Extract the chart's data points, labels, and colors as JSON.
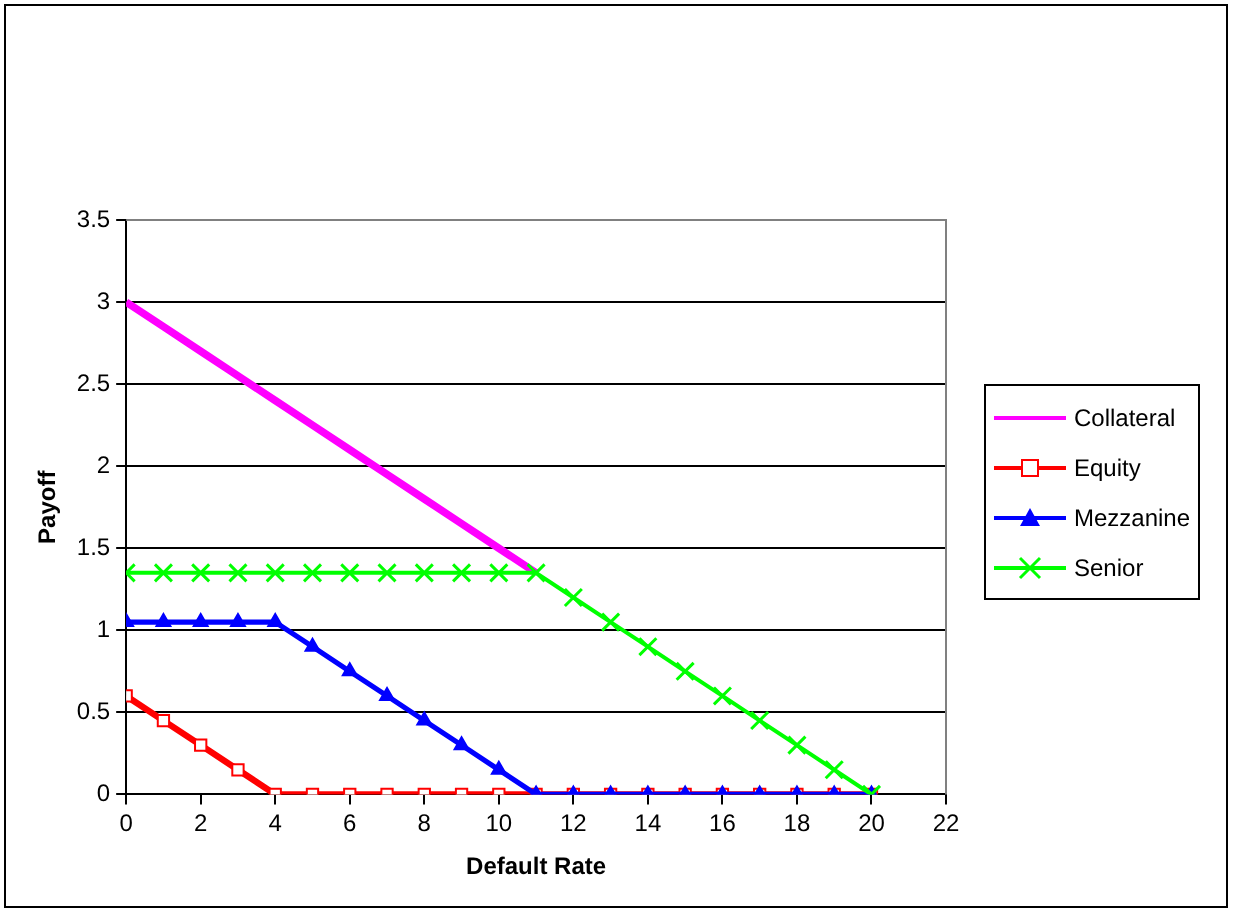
{
  "chart_data": {
    "type": "line",
    "xlabel": "Default Rate",
    "ylabel": "Payoff",
    "x": [
      0,
      1,
      2,
      3,
      4,
      5,
      6,
      7,
      8,
      9,
      10,
      11,
      12,
      13,
      14,
      15,
      16,
      17,
      18,
      19,
      20
    ],
    "series": [
      {
        "name": "Collateral",
        "color": "#ff00ff",
        "marker": "none",
        "values": [
          3,
          2.85,
          2.7,
          2.55,
          2.4,
          2.25,
          2.1,
          1.95,
          1.8,
          1.65,
          1.5,
          1.35,
          null,
          null,
          null,
          null,
          null,
          null,
          null,
          null,
          null
        ]
      },
      {
        "name": "Equity",
        "color": "#ff0000",
        "marker": "square",
        "values": [
          0.6,
          0.45,
          0.3,
          0.15,
          0,
          0,
          0,
          0,
          0,
          0,
          0,
          0,
          0,
          0,
          0,
          0,
          0,
          0,
          0,
          0,
          0
        ]
      },
      {
        "name": "Mezzanine",
        "color": "#0000ff",
        "marker": "triangle",
        "values": [
          1.05,
          1.05,
          1.05,
          1.05,
          1.05,
          0.9,
          0.75,
          0.6,
          0.45,
          0.3,
          0.15,
          0,
          0,
          0,
          0,
          0,
          0,
          0,
          0,
          0,
          0
        ]
      },
      {
        "name": "Senior",
        "color": "#00ff00",
        "marker": "cross",
        "values": [
          1.35,
          1.35,
          1.35,
          1.35,
          1.35,
          1.35,
          1.35,
          1.35,
          1.35,
          1.35,
          1.35,
          1.35,
          1.2,
          1.05,
          0.9,
          0.75,
          0.6,
          0.45,
          0.3,
          0.15,
          0
        ]
      }
    ],
    "xlim": [
      0,
      22
    ],
    "xticks": [
      0,
      2,
      4,
      6,
      8,
      10,
      12,
      14,
      16,
      18,
      20,
      22
    ],
    "ylim": [
      0,
      3.5
    ],
    "yticks": [
      0,
      0.5,
      1,
      1.5,
      2,
      2.5,
      3,
      3.5
    ],
    "grid": "y",
    "legend": "right"
  }
}
